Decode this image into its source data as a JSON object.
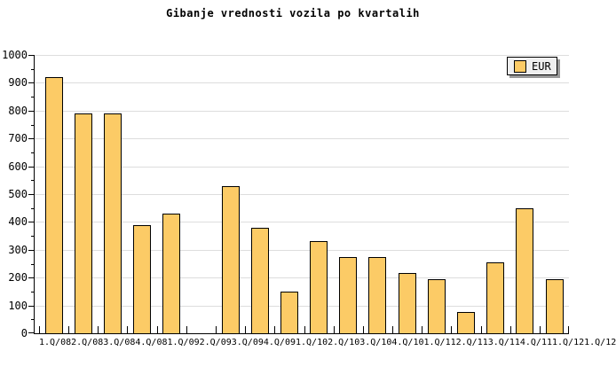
{
  "title": "Gibanje vrednosti vozila po kvartalih",
  "legend": {
    "label": "EUR"
  },
  "colors": {
    "bar_fill": "#FCCB66",
    "bar_border": "#000000",
    "grid": "#DDDDDD",
    "axis": "#000000",
    "background": "#FFFFFF",
    "legend_bg": "#EFEFEF",
    "legend_shadow": "#999999",
    "text": "#000000"
  },
  "chart_data": {
    "type": "bar",
    "title": "Gibanje vrednosti vozila po kvartalih",
    "categories": [
      "1.Q/08",
      "2.Q/08",
      "3.Q/08",
      "4.Q/08",
      "1.Q/09",
      "2.Q/09",
      "3.Q/09",
      "4.Q/09",
      "1.Q/10",
      "2.Q/10",
      "3.Q/10",
      "4.Q/10",
      "1.Q/11",
      "2.Q/11",
      "3.Q/11",
      "4.Q/11",
      "1.Q/12",
      "1.Q/12"
    ],
    "series": [
      {
        "name": "EUR",
        "values": [
          920,
          790,
          790,
          390,
          430,
          0,
          530,
          380,
          150,
          330,
          275,
          275,
          215,
          195,
          75,
          255,
          450,
          195
        ]
      }
    ],
    "xlabel": "",
    "ylabel": "",
    "ylim": [
      0,
      1000
    ],
    "ytick_step": 100,
    "y_minor_tick_step": 50,
    "ytick_labels": [
      "0",
      "100",
      "200",
      "300",
      "400",
      "500",
      "600",
      "700",
      "800",
      "900",
      "1000"
    ],
    "grid": "horizontal-major",
    "legend_position": "top-right",
    "legend_entries": [
      "EUR"
    ],
    "missing_bars": [
      "2.Q/09"
    ]
  }
}
